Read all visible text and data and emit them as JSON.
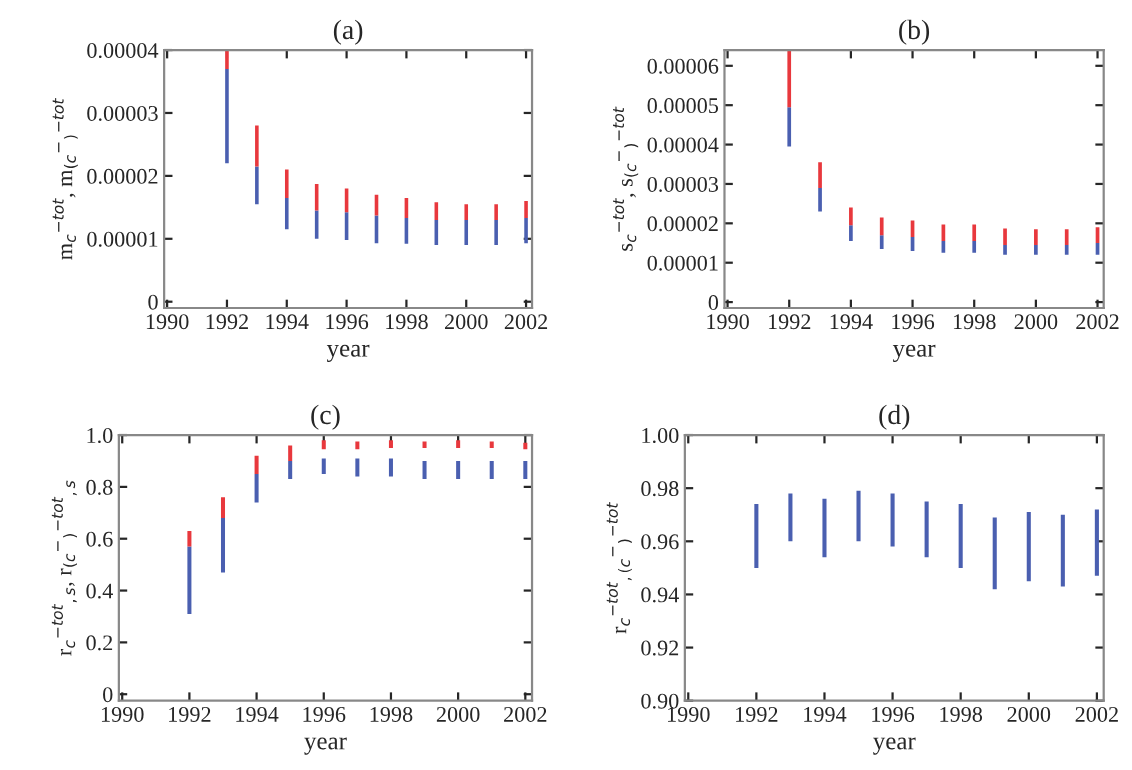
{
  "chart_data": [
    {
      "type": "bar",
      "title": "(a)",
      "xlabel": "year",
      "ylabel": "m$_{c}$$^{−tot}$, m$_{(c}$$^{−}$$_{)}$$^{−tot}$",
      "x": [
        1992,
        1993,
        1994,
        1995,
        1996,
        1997,
        1998,
        1999,
        2000,
        2001,
        2002
      ],
      "series": [
        {
          "color": "#4a5fb0",
          "base": [
            2.2e-05,
            1.55e-05,
            1.15e-05,
            1e-05,
            9.8e-06,
            9.3e-06,
            9.2e-06,
            9e-06,
            9e-06,
            9e-06,
            9.3e-06
          ],
          "values": [
            1.5e-05,
            6e-06,
            5e-06,
            4.5e-06,
            4.4e-06,
            4.4e-06,
            4.1e-06,
            4e-06,
            4e-06,
            4e-06,
            4e-06
          ]
        },
        {
          "color": "#e8383d",
          "base": [
            3.7e-05,
            2.15e-05,
            1.65e-05,
            1.45e-05,
            1.42e-05,
            1.37e-05,
            1.33e-05,
            1.3e-05,
            1.3e-05,
            1.3e-05,
            1.33e-05
          ],
          "values": [
            3e-06,
            6.5e-06,
            4.5e-06,
            4.2e-06,
            3.8e-06,
            3.3e-06,
            3.2e-06,
            2.8e-06,
            2.5e-06,
            2.5e-06,
            2.7e-06
          ]
        }
      ],
      "xlim": [
        1989.9,
        2002.2
      ],
      "xticks": [
        1990,
        1992,
        1994,
        1996,
        1998,
        2000,
        2002
      ],
      "ylim": [
        -1e-06,
        4e-05
      ],
      "yticks": [
        0,
        {
          "value": 1e-05,
          "label": "0.00001"
        },
        {
          "value": 2e-05,
          "label": "0.00002"
        },
        {
          "value": 3e-05,
          "label": "0.00003"
        },
        {
          "value": 4e-05,
          "label": "0.00004"
        }
      ],
      "grid": false,
      "legend": false
    },
    {
      "type": "bar",
      "title": "(b)",
      "xlabel": "year",
      "ylabel": "s$_{c}$$^{−tot}$, s$_{(c}$$^{−}$$_{)}$$^{−tot}$",
      "x": [
        1992,
        1993,
        1994,
        1995,
        1996,
        1997,
        1998,
        1999,
        2000,
        2001,
        2002
      ],
      "series": [
        {
          "color": "#4a5fb0",
          "base": [
            3.95e-05,
            2.3e-05,
            1.55e-05,
            1.35e-05,
            1.3e-05,
            1.25e-05,
            1.25e-05,
            1.2e-05,
            1.2e-05,
            1.2e-05,
            1.2e-05
          ],
          "values": [
            1e-05,
            6e-06,
            4e-06,
            3.5e-06,
            3.5e-06,
            3e-06,
            3e-06,
            2.5e-06,
            2.5e-06,
            2.5e-06,
            3e-06
          ]
        },
        {
          "color": "#e8383d",
          "base": [
            4.95e-05,
            2.9e-05,
            1.95e-05,
            1.7e-05,
            1.65e-05,
            1.55e-05,
            1.55e-05,
            1.45e-05,
            1.45e-05,
            1.45e-05,
            1.5e-05
          ],
          "values": [
            1.45e-05,
            6.5e-06,
            4.5e-06,
            4.5e-06,
            4.2e-06,
            4.2e-06,
            4.2e-06,
            4.2e-06,
            4e-06,
            4e-06,
            4e-06
          ]
        }
      ],
      "xlim": [
        1989.9,
        2002.2
      ],
      "xticks": [
        1990,
        1992,
        1994,
        1996,
        1998,
        2000,
        2002
      ],
      "ylim": [
        -1.5e-06,
        6.4e-05
      ],
      "yticks": [
        0,
        {
          "value": 1e-05,
          "label": "0.00001"
        },
        {
          "value": 2e-05,
          "label": "0.00002"
        },
        {
          "value": 3e-05,
          "label": "0.00003"
        },
        {
          "value": 4e-05,
          "label": "0.00004"
        },
        {
          "value": 5e-05,
          "label": "0.00005"
        },
        {
          "value": 6e-05,
          "label": "0.00006"
        }
      ],
      "grid": false,
      "legend": false
    },
    {
      "type": "bar",
      "title": "(c)",
      "xlabel": "year",
      "ylabel": "r$_{c}$$^{−tot}$$_{,s}$, r$_{(c}$$^{−}$$_{)}$$^{−tot}$$_{,s}$",
      "x": [
        1992,
        1993,
        1994,
        1995,
        1996,
        1997,
        1998,
        1999,
        2000,
        2001,
        2002
      ],
      "series": [
        {
          "color": "#4a5fb0",
          "base": [
            0.31,
            0.47,
            0.74,
            0.83,
            0.85,
            0.84,
            0.84,
            0.83,
            0.83,
            0.83,
            0.83
          ],
          "values": [
            0.26,
            0.21,
            0.11,
            0.07,
            0.06,
            0.07,
            0.07,
            0.07,
            0.07,
            0.07,
            0.07
          ]
        },
        {
          "color": "#e8383d",
          "base": [
            0.57,
            0.68,
            0.85,
            0.9,
            0.945,
            0.945,
            0.95,
            0.95,
            0.95,
            0.95,
            0.945
          ],
          "values": [
            0.06,
            0.08,
            0.07,
            0.06,
            0.035,
            0.03,
            0.03,
            0.025,
            0.03,
            0.025,
            0.025
          ]
        }
      ],
      "xlim": [
        1989.9,
        2002.2
      ],
      "xticks": [
        1990,
        1992,
        1994,
        1996,
        1998,
        2000,
        2002
      ],
      "ylim": [
        -0.025,
        1.0
      ],
      "yticks": [
        0,
        {
          "value": 0.2,
          "label": "0.2"
        },
        {
          "value": 0.4,
          "label": "0.4"
        },
        {
          "value": 0.6,
          "label": "0.6"
        },
        {
          "value": 0.8,
          "label": "0.8"
        },
        {
          "value": 1.0,
          "label": "1.0"
        }
      ],
      "grid": false,
      "legend": false
    },
    {
      "type": "bar",
      "title": "(d)",
      "xlabel": "year",
      "ylabel": "r$_{c}$$^{−tot}$$_{,(c}$$^{−}$$_{)}$$^{−tot}$",
      "x": [
        1992,
        1993,
        1994,
        1995,
        1996,
        1997,
        1998,
        1999,
        2000,
        2001,
        2002
      ],
      "series": [
        {
          "color": "#4a5fb0",
          "base": [
            0.95,
            0.96,
            0.954,
            0.96,
            0.958,
            0.954,
            0.95,
            0.942,
            0.945,
            0.943,
            0.947
          ],
          "values": [
            0.024,
            0.018,
            0.022,
            0.019,
            0.02,
            0.021,
            0.024,
            0.027,
            0.026,
            0.027,
            0.025
          ]
        }
      ],
      "xlim": [
        1989.9,
        2002.2
      ],
      "xticks": [
        1990,
        1992,
        1994,
        1996,
        1998,
        2000,
        2002
      ],
      "ylim": [
        0.9,
        1.0
      ],
      "yticks": [
        {
          "value": 0.9,
          "label": "0.90"
        },
        {
          "value": 0.92,
          "label": "0.92"
        },
        {
          "value": 0.94,
          "label": "0.94"
        },
        {
          "value": 0.96,
          "label": "0.96"
        },
        {
          "value": 0.98,
          "label": "0.98"
        },
        {
          "value": 1.0,
          "label": "1.00"
        }
      ],
      "grid": false,
      "legend": false
    }
  ]
}
